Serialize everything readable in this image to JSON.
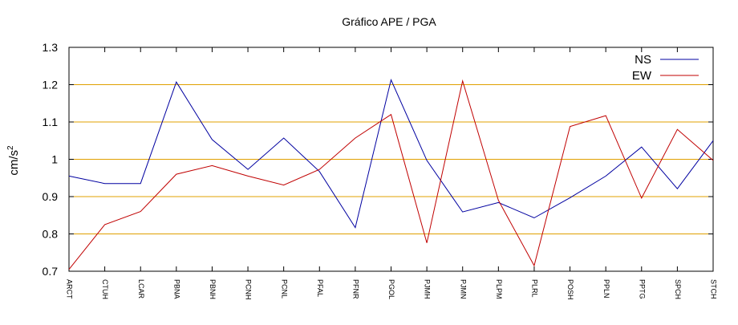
{
  "chart_data": {
    "type": "line",
    "title": "Gráfico  APE / PGA",
    "xlabel": "",
    "ylabel": "cm/s",
    "ylabel_sup": "2",
    "ylim": [
      0.7,
      1.3
    ],
    "yticks": [
      "0.7",
      "0.8",
      "0.9",
      "1",
      "1.1",
      "1.2",
      "1.3"
    ],
    "grid": "horizontal",
    "legend_position": "top-right",
    "categories": [
      "ARCT",
      "CTUH",
      "LCAR",
      "PBNA",
      "PBNH",
      "PCNH",
      "PCNL",
      "PFAL",
      "PFNR",
      "PGOL",
      "PJMH",
      "PJMN",
      "PLPM",
      "PLRL",
      "POSH",
      "PPLN",
      "PPTG",
      "SPCH",
      "STCH"
    ],
    "series": [
      {
        "name": "NS",
        "color": "#0000a0",
        "values": [
          0.955,
          0.935,
          0.935,
          1.207,
          1.053,
          0.973,
          1.057,
          0.967,
          0.817,
          1.213,
          0.997,
          0.859,
          0.884,
          0.843,
          0.897,
          0.955,
          1.033,
          0.921,
          1.05
        ]
      },
      {
        "name": "EW",
        "color": "#c00000",
        "values": [
          0.705,
          0.825,
          0.86,
          0.96,
          0.983,
          0.955,
          0.931,
          0.973,
          1.057,
          1.12,
          0.776,
          1.21,
          0.89,
          0.715,
          1.088,
          1.117,
          0.896,
          1.08,
          0.997
        ]
      }
    ],
    "colors": {
      "grid": "#e0a000",
      "axis": "#000000"
    }
  }
}
